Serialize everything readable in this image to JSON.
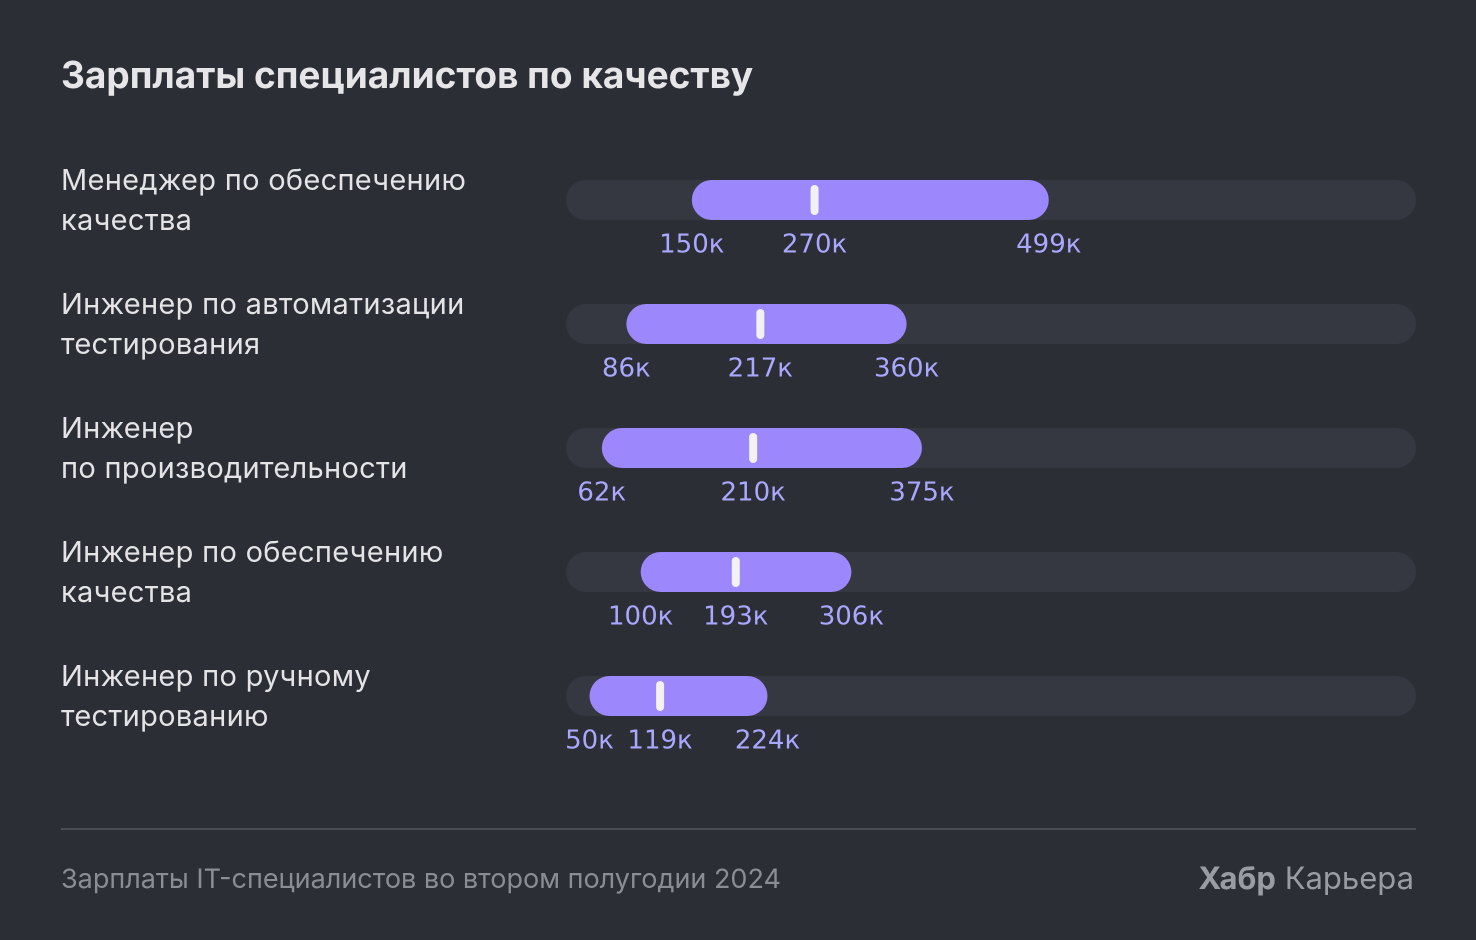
{
  "chart_data": {
    "type": "range",
    "title": "Зарплаты специалистов по качеству",
    "categories": [
      "Менеджер по обеспечению\nкачества",
      "Инженер по автоматизации\nтестирования",
      "Инженер\nпо производительности",
      "Инженер по обеспечению\nкачества",
      "Инженер по ручному\nтестированию"
    ],
    "series": [
      {
        "color": "#9d87fc",
        "values": [
          150,
          86,
          62,
          100,
          50
        ],
        "value_labels": [
          "150к",
          "86к",
          "62к",
          "100к",
          "50к"
        ]
      },
      {
        "color": "#f2f2f5",
        "values": [
          270,
          217,
          210,
          193,
          119
        ],
        "value_labels": [
          "270к",
          "217к",
          "210к",
          "193к",
          "119к"
        ]
      },
      {
        "color": "#9d87fc",
        "values": [
          499,
          360,
          375,
          306,
          224
        ],
        "value_labels": [
          "499к",
          "360к",
          "375к",
          "306к",
          "224к"
        ]
      }
    ],
    "xlim": [
      27,
      858
    ],
    "track_color": "#363841",
    "footer": "Зарплаты IT-специалистов во втором полугодии 2024",
    "brand": {
      "bold": "Хабр",
      "rest": "Карьера"
    }
  }
}
